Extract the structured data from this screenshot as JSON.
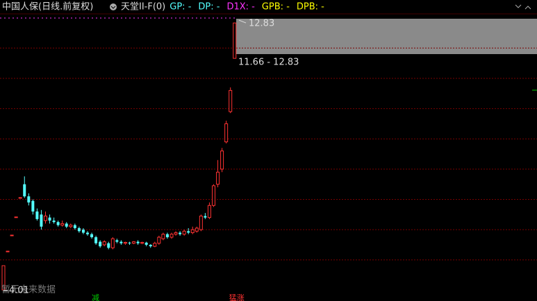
{
  "chart_data": {
    "type": "candlestick",
    "title": "中国人保(日线.前复权)",
    "indicator": "天堂II-F(0)",
    "indicator_labels": [
      {
        "text": "GP: -",
        "color": "#54ffff"
      },
      {
        "text": "DP: -",
        "color": "#54ffff"
      },
      {
        "text": "D1X: -",
        "color": "#ff33ff"
      },
      {
        "text": "GPB: -",
        "color": "#ffff00"
      },
      {
        "text": "DPB: -",
        "color": "#ffff00"
      }
    ],
    "ylim": [
      3.78,
      13.13
    ],
    "yticks": [
      5,
      6,
      7,
      8,
      9,
      10,
      11,
      12
    ],
    "grid": true,
    "up_color": "#ff3232",
    "down_color": "#54ffff",
    "open": [
      4.01,
      5.29,
      5.82,
      6.42,
      7.06,
      7.5,
      7.1,
      6.95,
      6.6,
      6.5,
      6.3,
      6.4,
      6.3,
      6.25,
      6.15,
      6.2,
      6.1,
      6.15,
      6.05,
      6.0,
      5.9,
      5.85,
      5.75,
      5.6,
      5.5,
      5.55,
      5.4,
      5.65,
      5.6,
      5.55,
      5.57,
      5.55,
      5.6,
      5.55,
      5.57,
      5.5,
      5.45,
      5.55,
      5.7,
      5.85,
      5.75,
      5.85,
      5.9,
      5.85,
      5.95,
      5.9,
      5.95,
      6.0,
      6.45,
      6.4,
      6.8,
      7.5,
      8.0,
      8.9,
      9.9,
      11.66
    ],
    "high": [
      4.81,
      5.29,
      5.82,
      6.42,
      7.06,
      7.76,
      7.2,
      7.0,
      6.7,
      6.65,
      6.6,
      6.5,
      6.4,
      6.3,
      6.3,
      6.25,
      6.2,
      6.2,
      6.1,
      6.05,
      5.95,
      5.9,
      5.8,
      5.65,
      5.65,
      5.6,
      5.75,
      5.7,
      5.65,
      5.6,
      5.6,
      5.62,
      5.65,
      5.6,
      5.6,
      5.52,
      5.6,
      5.8,
      5.9,
      5.9,
      5.9,
      5.95,
      5.95,
      6.0,
      6.05,
      6.1,
      6.1,
      6.5,
      6.55,
      6.9,
      7.5,
      8.3,
      8.7,
      9.6,
      10.7,
      12.83
    ],
    "low": [
      4.01,
      5.29,
      5.82,
      6.42,
      7.06,
      7.05,
      6.8,
      6.5,
      6.3,
      6.0,
      6.2,
      6.2,
      6.2,
      6.1,
      6.1,
      6.05,
      6.05,
      6.0,
      5.9,
      5.85,
      5.8,
      5.7,
      5.5,
      5.4,
      5.45,
      5.35,
      5.35,
      5.55,
      5.5,
      5.5,
      5.5,
      5.52,
      5.5,
      5.52,
      5.45,
      5.4,
      5.42,
      5.5,
      5.65,
      5.7,
      5.7,
      5.8,
      5.8,
      5.8,
      5.85,
      5.85,
      5.9,
      5.95,
      6.35,
      6.35,
      6.75,
      7.4,
      7.9,
      8.85,
      9.85,
      11.66
    ],
    "close": [
      4.81,
      5.29,
      5.82,
      6.42,
      7.06,
      7.1,
      6.9,
      6.6,
      6.35,
      6.1,
      6.45,
      6.3,
      6.25,
      6.15,
      6.2,
      6.1,
      6.15,
      6.05,
      5.95,
      5.9,
      5.85,
      5.75,
      5.55,
      5.45,
      5.6,
      5.4,
      5.7,
      5.6,
      5.55,
      5.58,
      5.55,
      5.6,
      5.55,
      5.58,
      5.5,
      5.45,
      5.55,
      5.75,
      5.85,
      5.75,
      5.85,
      5.9,
      5.85,
      5.95,
      5.9,
      6.0,
      6.05,
      6.45,
      6.4,
      6.8,
      7.45,
      7.9,
      8.6,
      9.5,
      10.6,
      12.83
    ],
    "low_label": "4.01",
    "high_label": "12.83",
    "range_label": "11.66 - 12.83",
    "note": "暂无未来数据",
    "signals": [
      {
        "text": "减",
        "index": 21,
        "color": "#00cc00"
      },
      {
        "text": "猛涨",
        "index": 55,
        "color": "#ff3232"
      }
    ]
  }
}
